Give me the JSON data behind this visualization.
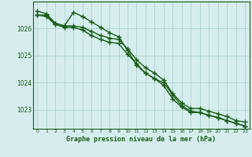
{
  "x": [
    0,
    1,
    2,
    3,
    4,
    5,
    6,
    7,
    8,
    9,
    10,
    11,
    12,
    13,
    14,
    15,
    16,
    17,
    18,
    19,
    20,
    21,
    22,
    23
  ],
  "line1": [
    1026.5,
    1026.5,
    1026.2,
    1026.1,
    1026.1,
    1026.05,
    1025.9,
    1025.75,
    1025.65,
    1025.6,
    1025.25,
    1024.85,
    1024.55,
    1024.35,
    1024.1,
    1023.6,
    1023.25,
    1023.05,
    1023.05,
    1022.95,
    1022.85,
    1022.75,
    1022.6,
    1022.55
  ],
  "line2": [
    1026.5,
    1026.45,
    1026.15,
    1026.05,
    1026.05,
    1025.95,
    1025.75,
    1025.6,
    1025.5,
    1025.45,
    1025.05,
    1024.7,
    1024.35,
    1024.15,
    1023.9,
    1023.4,
    1023.1,
    1022.9,
    1022.9,
    1022.8,
    1022.7,
    1022.6,
    1022.5,
    1022.4
  ],
  "line3": [
    1026.65,
    1026.55,
    1026.2,
    1026.1,
    1026.6,
    1026.45,
    1026.25,
    1026.05,
    1025.85,
    1025.7,
    1025.2,
    1024.65,
    1024.35,
    1024.15,
    1024.0,
    1023.55,
    1023.15,
    1022.95,
    1022.9,
    1022.8,
    1022.72,
    1022.6,
    1022.5,
    1022.4
  ],
  "bg_color": "#d5eeed",
  "line_color": "#1a5c1a",
  "grid_color": "#add4cc",
  "xlabel": "Graphe pression niveau de la mer (hPa)",
  "ylim": [
    1022.3,
    1027.0
  ],
  "yticks": [
    1023,
    1024,
    1025,
    1026
  ],
  "xticks": [
    0,
    1,
    2,
    3,
    4,
    5,
    6,
    7,
    8,
    9,
    10,
    11,
    12,
    13,
    14,
    15,
    16,
    17,
    18,
    19,
    20,
    21,
    22,
    23
  ],
  "marker": "+",
  "markersize": 4,
  "linewidth": 1.0
}
